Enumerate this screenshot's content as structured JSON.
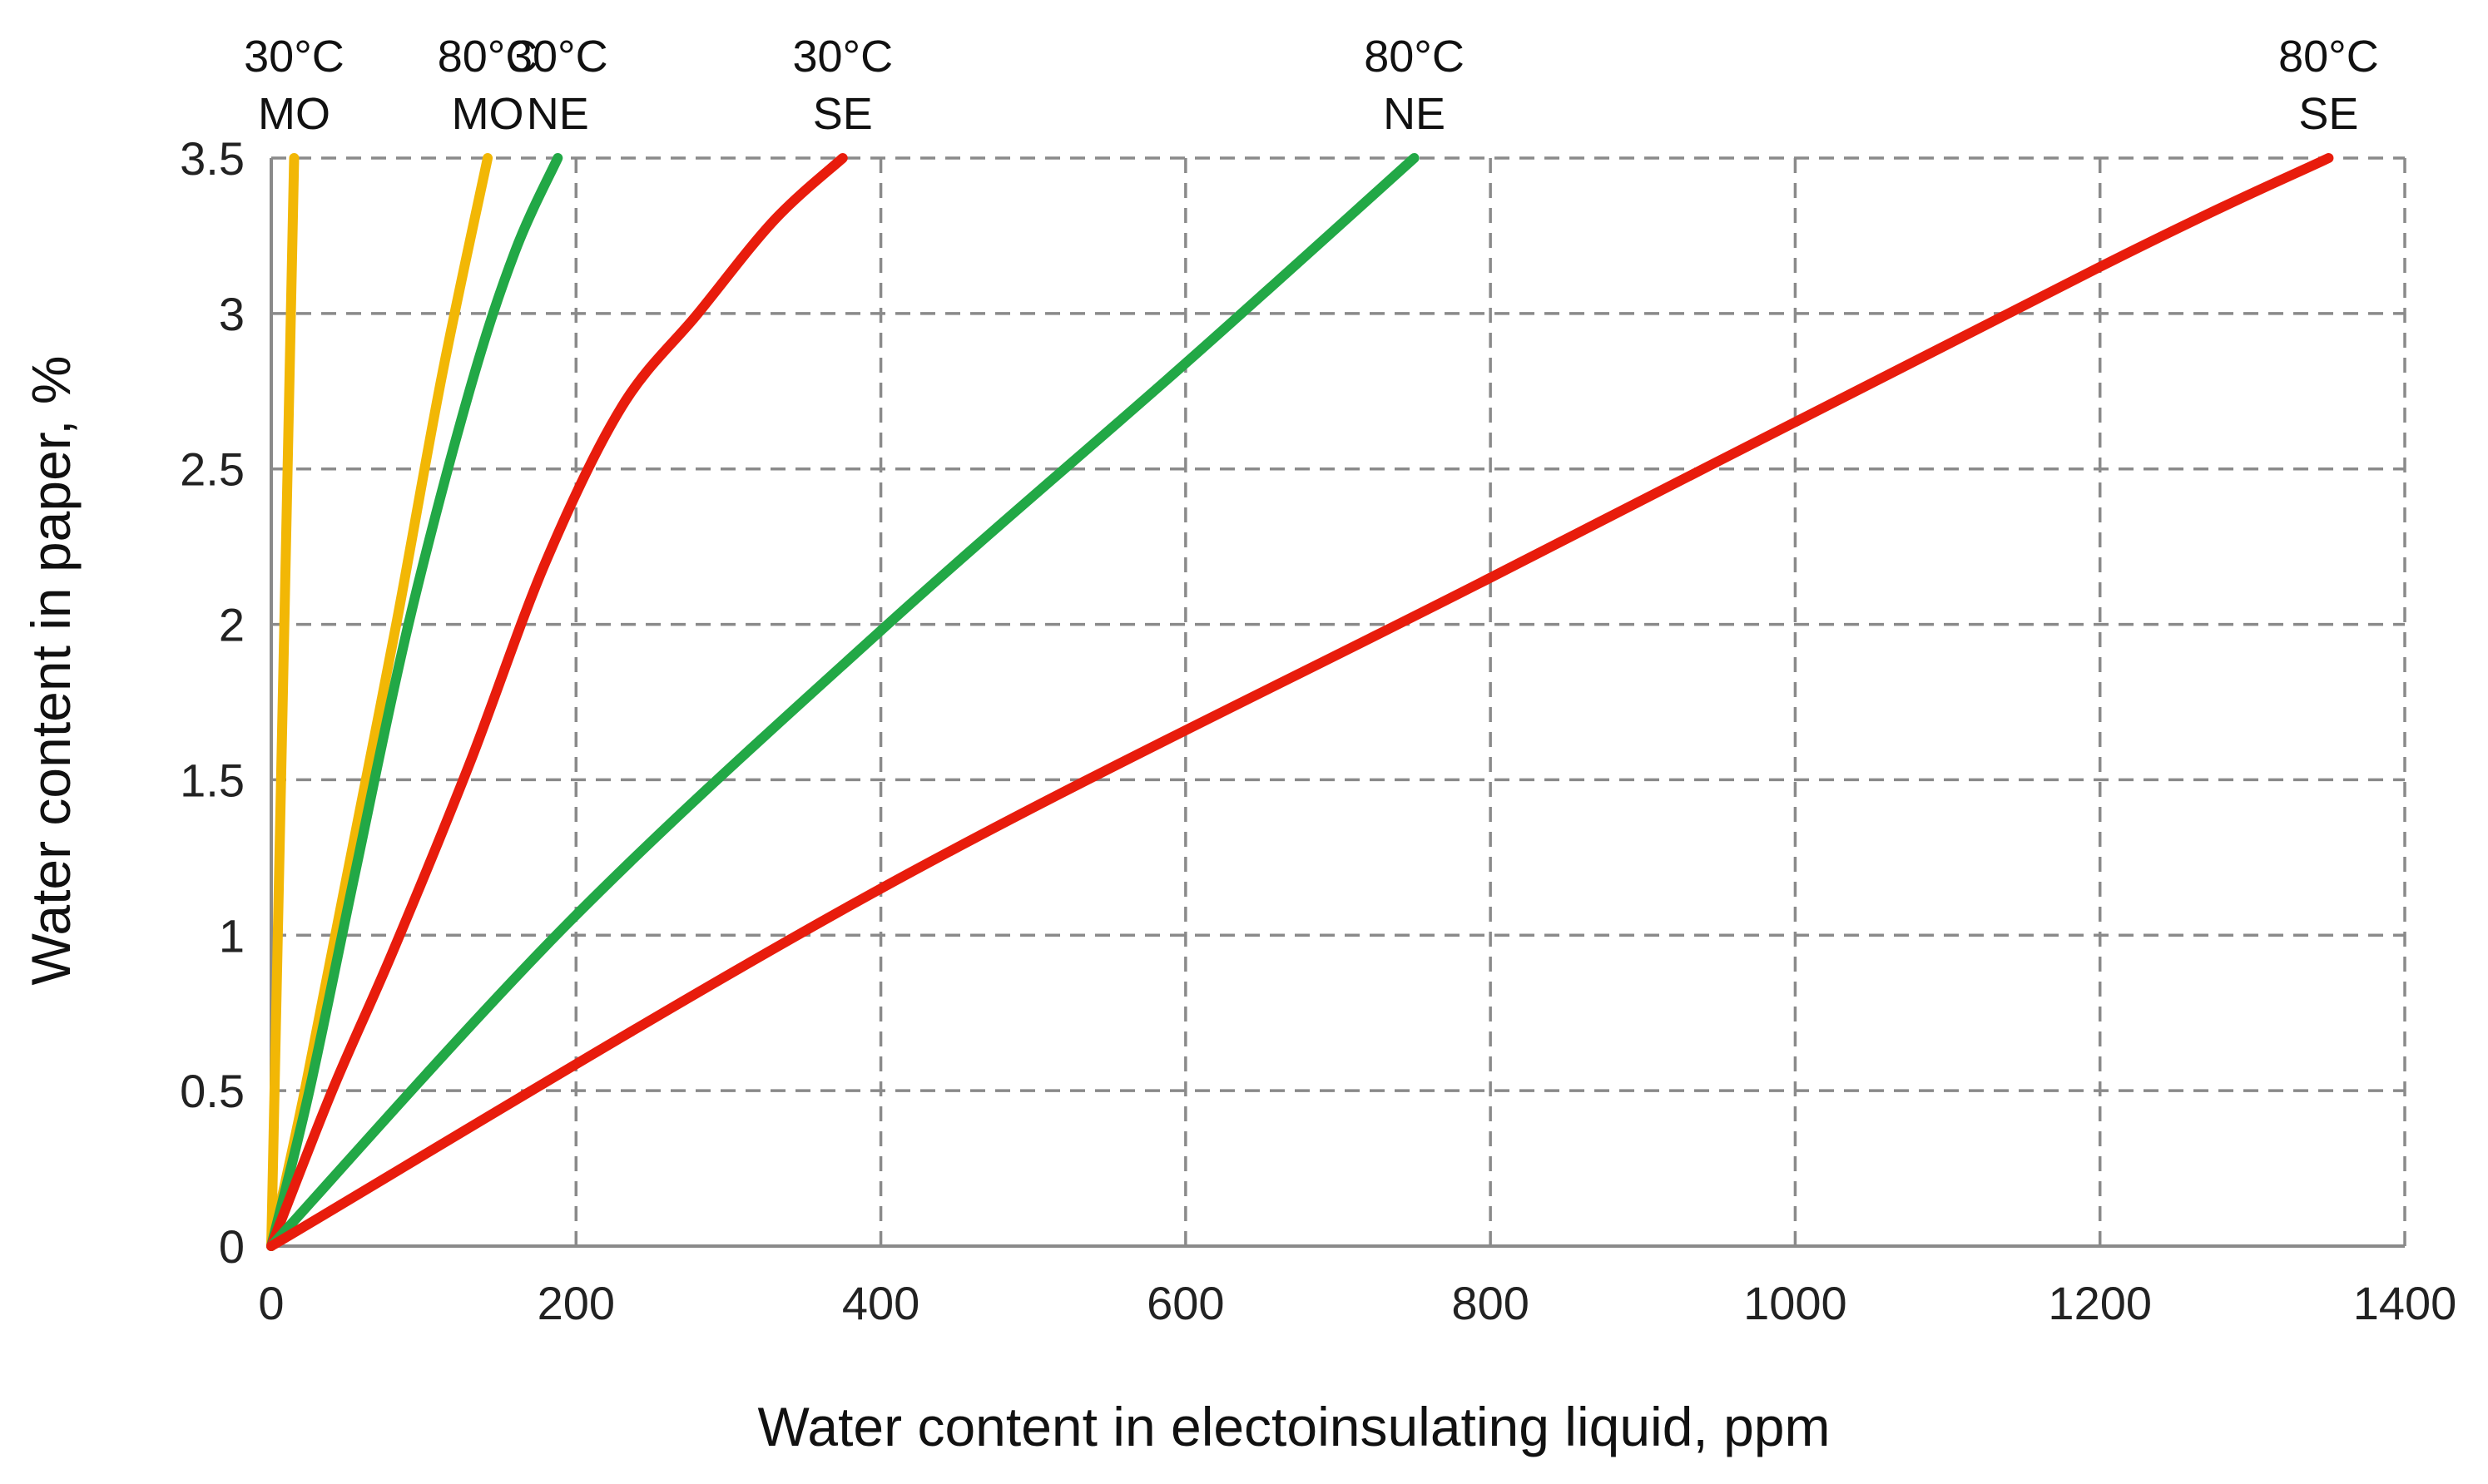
{
  "chart_data": {
    "type": "line",
    "title": "",
    "xlabel": "Water content in electoinsulating liquid, ppm",
    "ylabel": "Water content in paper, %",
    "xlim": [
      0,
      1400
    ],
    "ylim": [
      0,
      3.5
    ],
    "xticks": [
      0,
      200,
      400,
      600,
      800,
      1000,
      1200,
      1400
    ],
    "yticks": [
      0,
      0.5,
      1,
      1.5,
      2,
      2.5,
      3,
      3.5
    ],
    "xtick_labels": [
      "0",
      "200",
      "400",
      "600",
      "800",
      "1000",
      "1200",
      "1400"
    ],
    "ytick_labels": [
      "0",
      "0.5",
      "1",
      "1.5",
      "2",
      "2.5",
      "3",
      "3.5"
    ],
    "grid": true,
    "series": [
      {
        "id": "mo30",
        "temp": "30°C",
        "liquid": "MO",
        "color": "#f2b705",
        "x": [
          0,
          3,
          6,
          9,
          12,
          15
        ],
        "y": [
          0,
          0.7,
          1.4,
          2.1,
          2.8,
          3.5
        ]
      },
      {
        "id": "mo80",
        "temp": "80°C",
        "liquid": "MO",
        "color": "#f2b705",
        "x": [
          0,
          22,
          50,
          82,
          112,
          142
        ],
        "y": [
          0,
          0.5,
          1.2,
          2.0,
          2.8,
          3.5
        ]
      },
      {
        "id": "ne30",
        "temp": "30°C",
        "liquid": "NE",
        "color": "#22a846",
        "x": [
          0,
          25,
          55,
          90,
          130,
          160,
          188
        ],
        "y": [
          0,
          0.5,
          1.2,
          2.0,
          2.75,
          3.2,
          3.5
        ]
      },
      {
        "id": "se30",
        "temp": "30°C",
        "liquid": "SE",
        "color": "#e81c0c",
        "x": [
          0,
          40,
          80,
          130,
          180,
          230,
          280,
          330,
          375
        ],
        "y": [
          0,
          0.5,
          0.95,
          1.55,
          2.2,
          2.7,
          3.0,
          3.3,
          3.5
        ]
      },
      {
        "id": "ne80",
        "temp": "80°C",
        "liquid": "NE",
        "color": "#22a846",
        "x": [
          0,
          195,
          400,
          600,
          750
        ],
        "y": [
          0,
          1.04,
          1.98,
          2.84,
          3.5
        ]
      },
      {
        "id": "se80",
        "temp": "80°C",
        "liquid": "SE",
        "color": "#e81c0c",
        "x": [
          0,
          400,
          800,
          1200,
          1350
        ],
        "y": [
          0,
          1.15,
          2.15,
          3.15,
          3.5
        ]
      }
    ]
  }
}
